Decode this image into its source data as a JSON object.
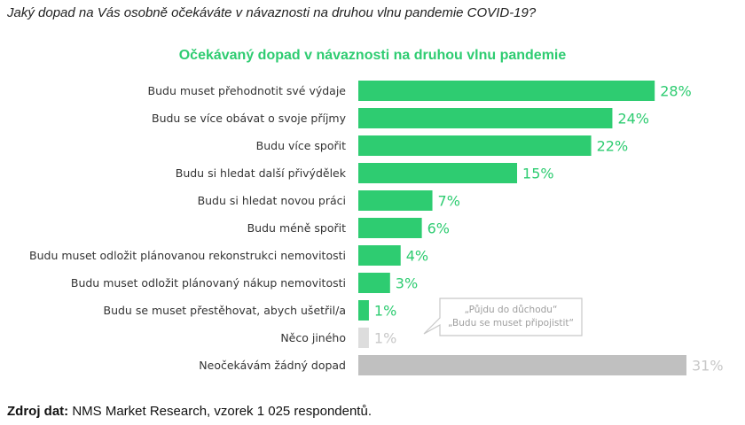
{
  "question": "Jaký dopad na Vás osobně očekáváte v návaznosti na druhou vlnu pandemie COVID-19?",
  "source": {
    "label": "Zdroj dat:",
    "text": " NMS Market Research, vzorek 1 025 respondentů."
  },
  "colors": {
    "green": "#2ecc71",
    "light_gray": "#dddddd",
    "gray": "#c0c0c0",
    "label_gray": "#c8c8c8",
    "callout_border": "#c8c8c8"
  },
  "chart_data": {
    "type": "bar",
    "orientation": "horizontal",
    "title": "Očekávaný dopad v návaznosti na druhou vlnu pandemie",
    "xlabel": "",
    "ylabel": "",
    "xlim": [
      0,
      31
    ],
    "grid": false,
    "legend": "none",
    "categories": [
      "Budu muset přehodnotit své výdaje",
      "Budu se více obávat o svoje příjmy",
      "Budu více spořit",
      "Budu si hledat další přivýdělek",
      "Budu si hledat novou práci",
      "Budu méně spořit",
      "Budu muset odložit plánovanou rekonstrukci  nemovitosti",
      "Budu muset odložit plánovaný nákup nemovitosti",
      "Budu se muset přestěhovat, abych ušetřil/a",
      "Něco jiného",
      "Neočekávám žádný dopad"
    ],
    "values": [
      28,
      24,
      22,
      15,
      7,
      6,
      4,
      3,
      1,
      1,
      31
    ],
    "value_labels": [
      "28%",
      "24%",
      "22%",
      "15%",
      "7%",
      "6%",
      "4%",
      "3%",
      "1%",
      "1%",
      "31%"
    ],
    "bar_colors": [
      "green",
      "green",
      "green",
      "green",
      "green",
      "green",
      "green",
      "green",
      "green",
      "light_gray",
      "gray"
    ],
    "annotation": {
      "lines": [
        "„Půjdu do důchodu“",
        "„Budu se muset připojistit“"
      ],
      "points_to": "Něco jiného"
    }
  }
}
